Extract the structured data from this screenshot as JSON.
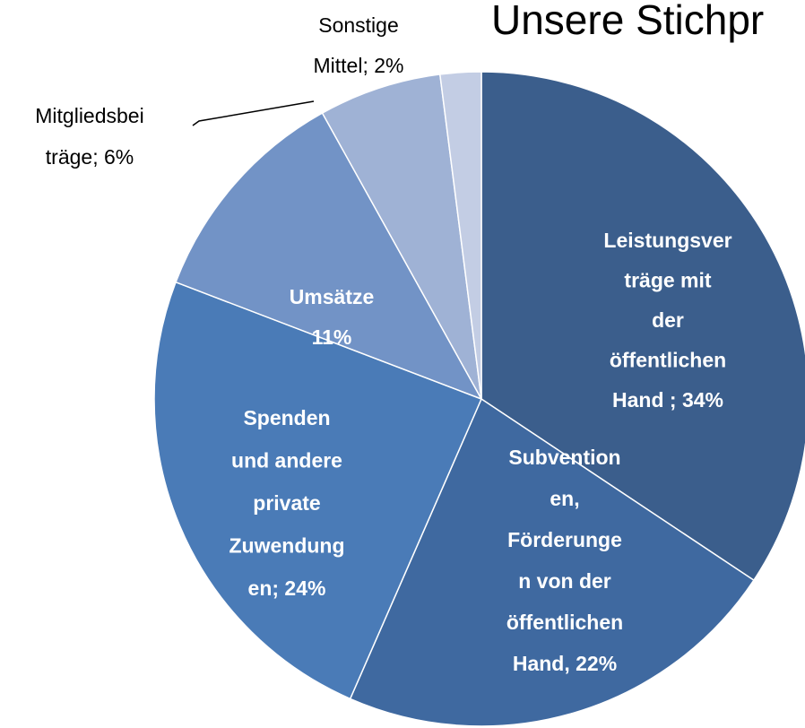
{
  "chart_data": {
    "type": "pie",
    "title": "Unsere Stichpr",
    "values": [
      34,
      22,
      24,
      11,
      6,
      2
    ],
    "value_labels": [
      [
        "Leistungsver",
        "träge mit",
        "der",
        "öffentlichen",
        "Hand ; 34%"
      ],
      [
        "Subvention",
        "en,",
        "Förderunge",
        "n von der",
        "öffentlichen",
        "Hand, 22%"
      ],
      [
        "Spenden",
        "und andere",
        "private",
        "Zuwendung",
        "en; 24%"
      ],
      [
        "Umsätze",
        "11%"
      ],
      [
        "Mitgliedsbei",
        "träge; 6%"
      ],
      [
        "Sonstige",
        "Mittel; 2%"
      ]
    ],
    "colors": [
      "#3b5e8c",
      "#3f69a0",
      "#4a7bb7",
      "#7293c6",
      "#9fb2d5",
      "#c3cde4"
    ]
  }
}
